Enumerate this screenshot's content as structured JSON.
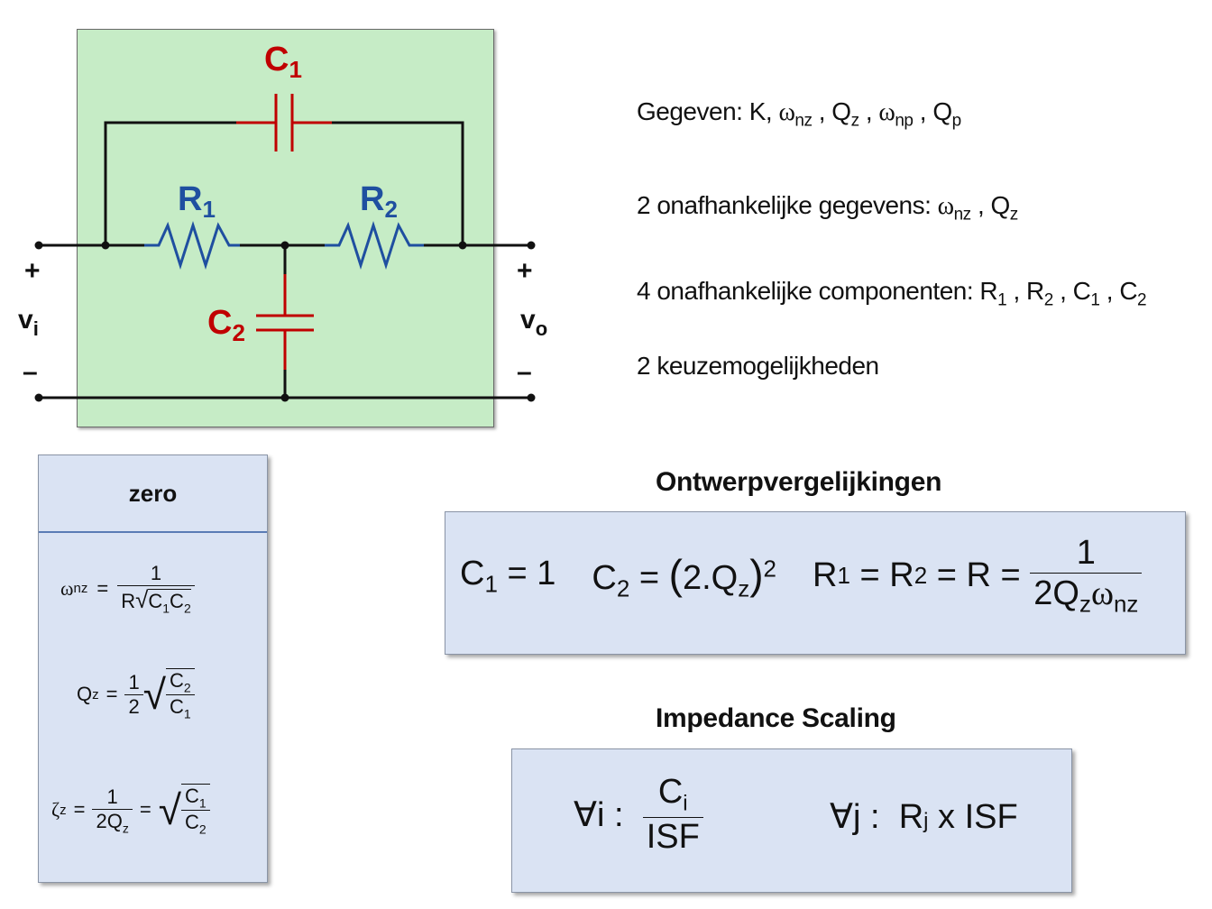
{
  "circuit": {
    "c1_label": "C",
    "c1_sub": "1",
    "r1_label": "R",
    "r1_sub": "1",
    "r2_label": "R",
    "r2_sub": "2",
    "c2_label": "C",
    "c2_sub": "2",
    "vin_plus": "+",
    "vin_label": "v",
    "vin_sub": "i",
    "vin_minus": "–",
    "vout_plus": "+",
    "vout_label": "v",
    "vout_sub": "o",
    "vout_minus": "–",
    "colors": {
      "capacitor": "#c00000",
      "resistor": "#1f4fa0",
      "wire": "#111111",
      "background": "#c6ecc6"
    }
  },
  "given": {
    "line1": {
      "prefix": "Gegeven: K,",
      "w": "ω",
      "nz": "nz",
      "sep1": " , Q",
      "z": "z",
      "sep2": " ,",
      "w2": "ω",
      "np": "np",
      "sep3": " , Q",
      "p": "p"
    },
    "line2": {
      "prefix": "2 onafhankelijke gegevens:",
      "w": "ω",
      "nz": "nz",
      "sep": " , Q",
      "z": "z"
    },
    "line3": {
      "prefix": "4 onafhankelijke componenten: R",
      "s1": "1",
      "t1": " , R",
      "s2": "2",
      "t2": " , C",
      "s3": "1",
      "t3": " , C",
      "s4": "2"
    },
    "line4": "2 keuzemogelijkheden"
  },
  "zero_panel": {
    "title": "zero",
    "eq1": {
      "lhs_w": "ω",
      "lhs_sub": "nz",
      "eq": "=",
      "num": "1",
      "den_r": "R",
      "den_c1": "C",
      "den_s1": "1",
      "den_c2": "C",
      "den_s2": "2"
    },
    "eq2": {
      "lhs": "Q",
      "lhs_sub": "z",
      "eq": "=",
      "half_num": "1",
      "half_den": "2",
      "c_num": "C",
      "c_num_sub": "2",
      "c_den": "C",
      "c_den_sub": "1"
    },
    "eq3": {
      "lhs": "ζ",
      "lhs_sub": "z",
      "eq": "=",
      "num": "1",
      "den": "2Q",
      "den_sub": "z",
      "eq2": "=",
      "c_num": "C",
      "c_num_sub": "1",
      "c_den": "C",
      "c_den_sub": "2"
    }
  },
  "design": {
    "heading": "Ontwerpvergelijkingen",
    "c1": "C",
    "c1_sub": "1",
    "c1_eq": "= 1",
    "c2": "C",
    "c2_sub": "2",
    "c2_eq": "=",
    "c2_inner": "2.Q",
    "c2_inner_sub": "z",
    "c2_exp": "2",
    "r": "R",
    "r1_sub": "1",
    "r_eq1": "= R",
    "r2_sub": "2",
    "r_eq2": "= R =",
    "num": "1",
    "den": "2Q",
    "den_sub1": "z",
    "den_w": "ω",
    "den_sub2": "nz"
  },
  "scaling": {
    "heading": "Impedance Scaling",
    "left_prefix": "∀i :",
    "left_num": "C",
    "left_num_sub": "i",
    "left_den": "ISF",
    "right_prefix": "∀j :",
    "right_r": "R",
    "right_sub": "j",
    "right_rest": "x ISF"
  }
}
